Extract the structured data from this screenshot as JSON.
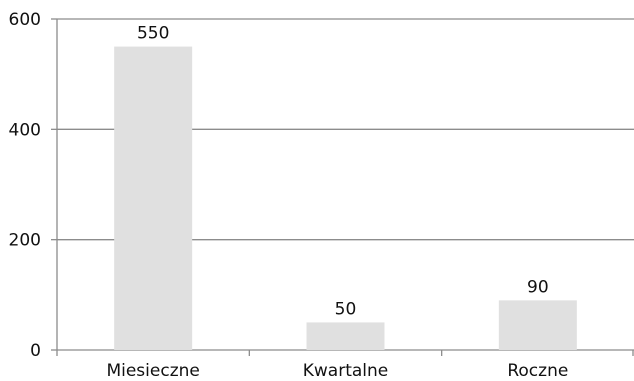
{
  "chart_data": {
    "type": "bar",
    "categories": [
      "Miesieczne",
      "Kwartalne",
      "Roczne"
    ],
    "values": [
      550,
      50,
      90
    ],
    "data_labels": [
      "550",
      "50",
      "90"
    ],
    "y_ticks": [
      0,
      200,
      400,
      600
    ],
    "y_tick_labels": [
      "0",
      "200",
      "400",
      "600"
    ],
    "ylim": [
      0,
      600
    ],
    "grid": true,
    "legend": "none",
    "colors": {
      "bar": "#e0e0e0",
      "grid": "#8c8c8c",
      "axis": "#8c8c8c",
      "text": "#111111"
    }
  }
}
